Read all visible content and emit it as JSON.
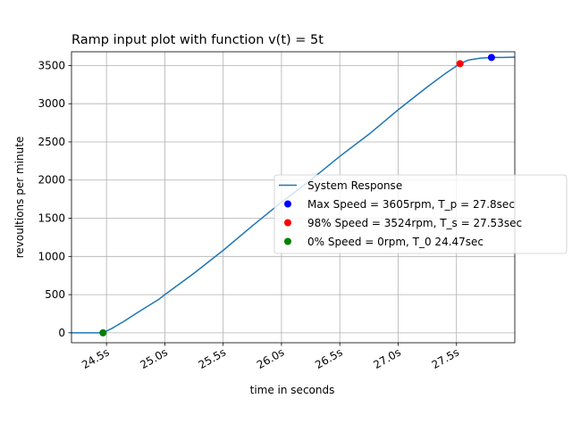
{
  "chart_data": {
    "type": "line",
    "title": "Ramp input plot with function v(t) = 5t",
    "xlabel": "time in seconds",
    "ylabel": "revoultions per minute",
    "xlim": [
      24.2,
      28.0
    ],
    "ylim": [
      -130,
      3680
    ],
    "x_ticks": [
      24.5,
      25.0,
      25.5,
      26.0,
      26.5,
      27.0,
      27.5
    ],
    "x_tick_labels": [
      "24.5s",
      "25.0s",
      "25.5s",
      "26.0s",
      "26.5s",
      "27.0s",
      "27.5s"
    ],
    "y_ticks": [
      0,
      500,
      1000,
      1500,
      2000,
      2500,
      3000,
      3500
    ],
    "y_tick_labels": [
      "0",
      "500",
      "1000",
      "1500",
      "2000",
      "2500",
      "3000",
      "3500"
    ],
    "grid": true,
    "legend_position": "center-right",
    "series": [
      {
        "name": "System Response",
        "color": "#1f77b4",
        "x": [
          24.2,
          24.47,
          24.55,
          24.65,
          24.75,
          24.85,
          24.95,
          25.0,
          25.25,
          25.5,
          25.75,
          26.0,
          26.25,
          26.5,
          26.75,
          27.0,
          27.25,
          27.4,
          27.53,
          27.6,
          27.7,
          27.8,
          27.9,
          28.0
        ],
        "y": [
          0,
          0,
          60,
          150,
          250,
          345,
          440,
          500,
          780,
          1080,
          1400,
          1710,
          2000,
          2310,
          2600,
          2920,
          3220,
          3390,
          3524,
          3570,
          3595,
          3605,
          3605,
          3610
        ]
      }
    ],
    "annotations": [
      {
        "label": "Max Speed = 3605rpm, T_p = 27.8sec",
        "x": 27.8,
        "y": 3605,
        "color": "#0000ff"
      },
      {
        "label": "98% Speed = 3524rpm, T_s = 27.53sec",
        "x": 27.53,
        "y": 3524,
        "color": "#ff0000"
      },
      {
        "label": "0% Speed = 0rpm, T_0 24.47sec",
        "x": 24.47,
        "y": 0,
        "color": "#008000"
      }
    ]
  }
}
